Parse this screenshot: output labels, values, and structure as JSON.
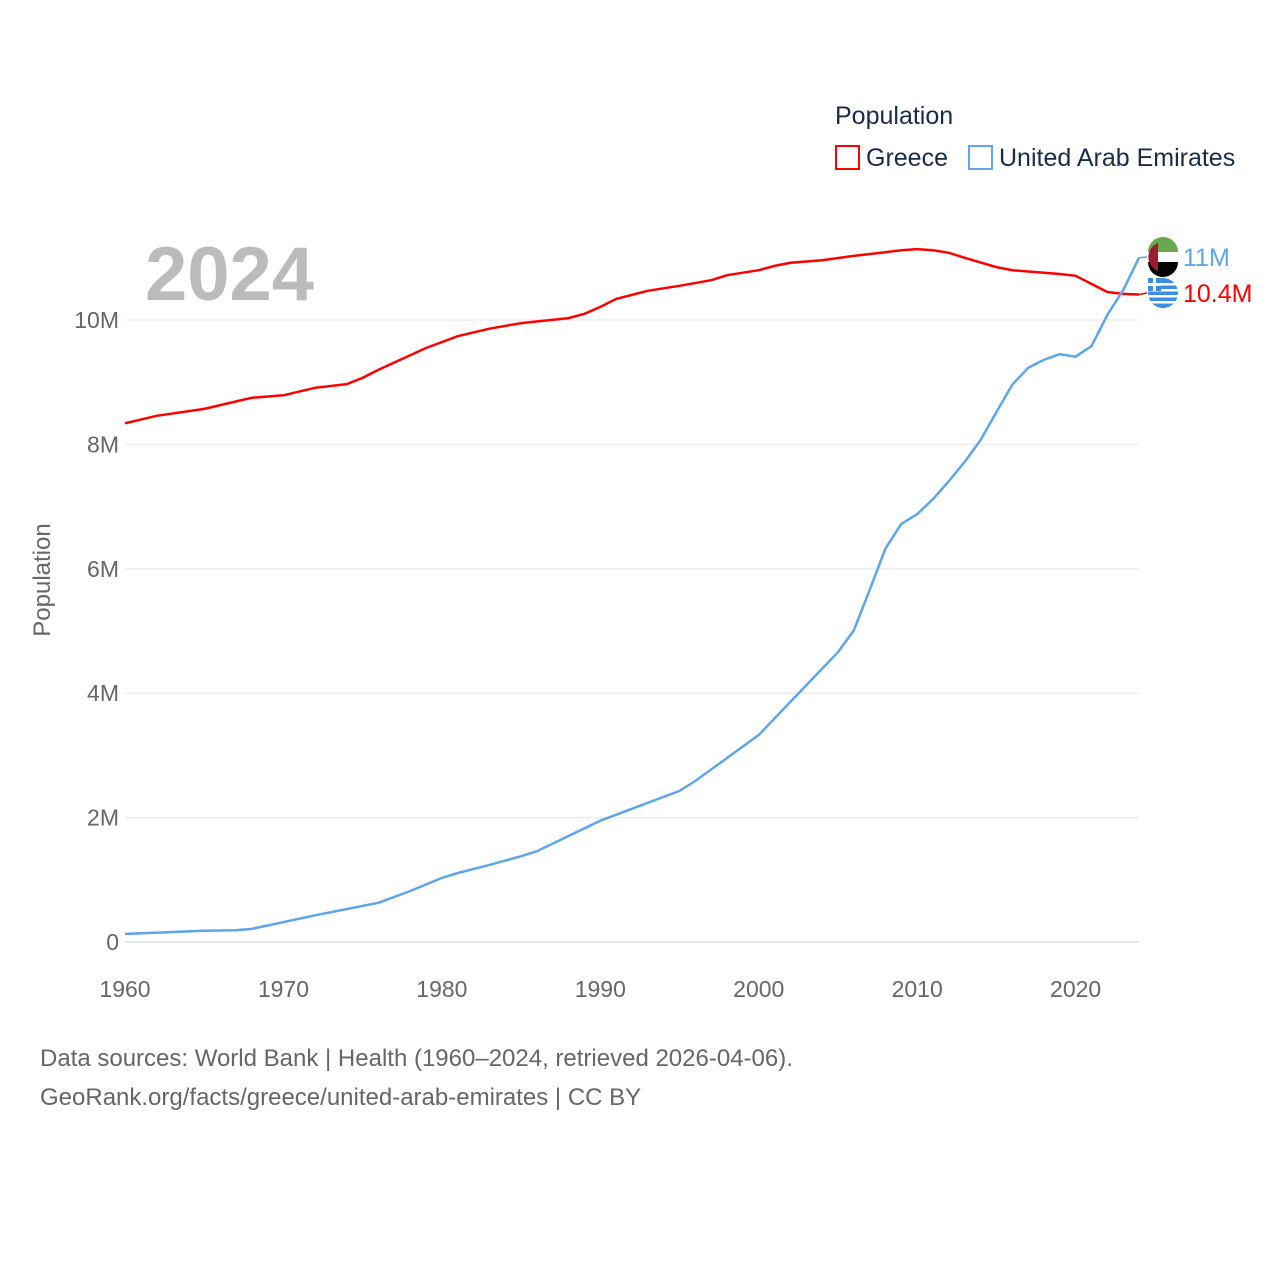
{
  "chart_data": {
    "type": "line",
    "title": "Population",
    "year_label": "2024",
    "xlabel": "",
    "ylabel": "Population",
    "xlim": [
      1960,
      2024
    ],
    "ylim": [
      0,
      11200000
    ],
    "x_ticks": [
      1960,
      1970,
      1980,
      1990,
      2000,
      2010,
      2020
    ],
    "y_ticks": [
      {
        "value": 0,
        "label": "0"
      },
      {
        "value": 2000000,
        "label": "2M"
      },
      {
        "value": 4000000,
        "label": "4M"
      },
      {
        "value": 6000000,
        "label": "6M"
      },
      {
        "value": 8000000,
        "label": "8M"
      },
      {
        "value": 10000000,
        "label": "10M"
      }
    ],
    "grid": true,
    "legend": {
      "title": "Population",
      "placement": "top-right"
    },
    "series": [
      {
        "name": "Greece",
        "color": "#ff0000",
        "end_label": "10.4M",
        "flag": "greece-flag",
        "x": [
          1960,
          1962,
          1965,
          1968,
          1970,
          1972,
          1974,
          1975,
          1976,
          1979,
          1981,
          1983,
          1985,
          1988,
          1989,
          1990,
          1991,
          1993,
          1995,
          1997,
          1998,
          2000,
          2001,
          2002,
          2004,
          2006,
          2008,
          2009,
          2010,
          2011,
          2012,
          2013,
          2015,
          2016,
          2018,
          2019,
          2020,
          2021,
          2022,
          2023,
          2024
        ],
        "y": [
          8.34,
          8.46,
          8.57,
          8.75,
          8.79,
          8.91,
          8.97,
          9.07,
          9.2,
          9.55,
          9.74,
          9.86,
          9.95,
          10.03,
          10.1,
          10.21,
          10.34,
          10.47,
          10.55,
          10.64,
          10.72,
          10.8,
          10.87,
          10.92,
          10.96,
          11.03,
          11.09,
          11.12,
          11.14,
          11.12,
          11.08,
          11.0,
          10.85,
          10.8,
          10.76,
          10.74,
          10.71,
          10.58,
          10.45,
          10.42,
          10.41
        ]
      },
      {
        "name": "United Arab Emirates",
        "color": "#5ea6ea",
        "end_label": "11M",
        "flag": "uae-flag",
        "x": [
          1960,
          1965,
          1967,
          1968,
          1970,
          1972,
          1975,
          1976,
          1978,
          1980,
          1981,
          1983,
          1985,
          1986,
          1990,
          1995,
          1996,
          2000,
          2005,
          2006,
          2007,
          2008,
          2009,
          2010,
          2011,
          2012,
          2013,
          2014,
          2015,
          2016,
          2017,
          2018,
          2019,
          2020,
          2021,
          2022,
          2023,
          2024
        ],
        "y": [
          0.13,
          0.18,
          0.19,
          0.21,
          0.32,
          0.43,
          0.58,
          0.63,
          0.82,
          1.03,
          1.11,
          1.24,
          1.38,
          1.46,
          1.95,
          2.43,
          2.59,
          3.33,
          4.66,
          5.01,
          5.66,
          6.33,
          6.72,
          6.88,
          7.12,
          7.41,
          7.72,
          8.07,
          8.52,
          8.96,
          9.23,
          9.36,
          9.45,
          9.41,
          9.58,
          10.08,
          10.48,
          11.0
        ]
      }
    ],
    "y_unit": "millions"
  },
  "footer": {
    "line1": "Data sources: World Bank | Health (1960–2024, retrieved 2026-04-06).",
    "line2": "GeoRank.org/facts/greece/united-arab-emirates | CC BY"
  }
}
